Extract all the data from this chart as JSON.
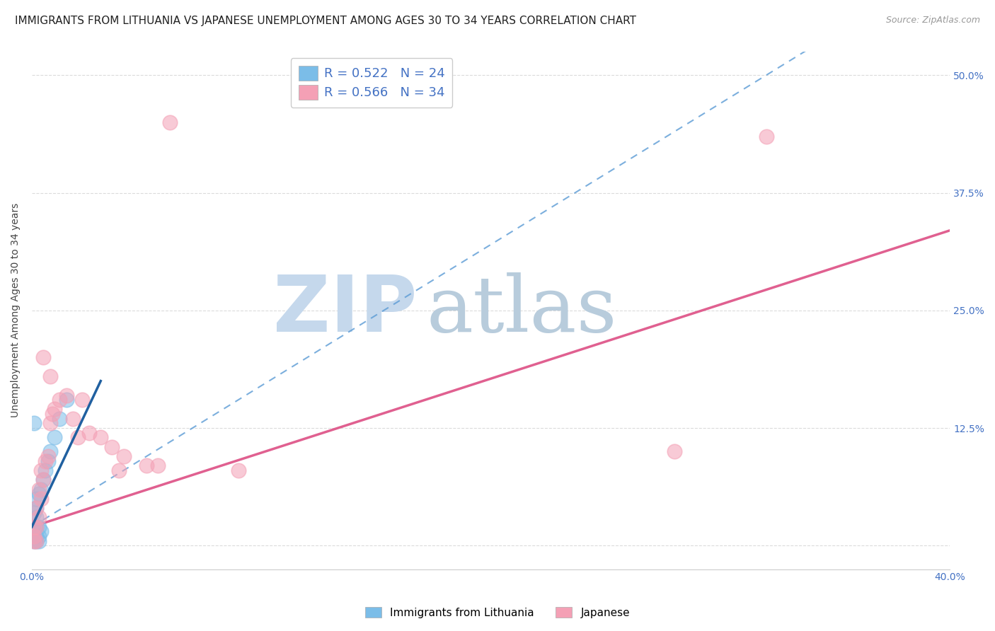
{
  "title": "IMMIGRANTS FROM LITHUANIA VS JAPANESE UNEMPLOYMENT AMONG AGES 30 TO 34 YEARS CORRELATION CHART",
  "source": "Source: ZipAtlas.com",
  "ylabel": "Unemployment Among Ages 30 to 34 years",
  "legend_blue": "Immigrants from Lithuania",
  "legend_pink": "Japanese",
  "xlim": [
    0.0,
    0.4
  ],
  "ylim": [
    -0.025,
    0.525
  ],
  "xticks": [
    0.0,
    0.08,
    0.16,
    0.24,
    0.32,
    0.4
  ],
  "xtick_labels": [
    "0.0%",
    "",
    "",
    "",
    "",
    "40.0%"
  ],
  "ytick_labels": [
    "",
    "12.5%",
    "25.0%",
    "37.5%",
    "50.0%"
  ],
  "yticks": [
    0.0,
    0.125,
    0.25,
    0.375,
    0.5
  ],
  "blue_r": "0.522",
  "blue_n": "24",
  "pink_r": "0.566",
  "pink_n": "34",
  "blue_color": "#7bbde8",
  "pink_color": "#f4a0b5",
  "blue_line_color": "#5b9bd5",
  "pink_line_color": "#e06090",
  "blue_solid_line": [
    [
      0.0,
      0.02
    ],
    [
      0.022,
      0.155
    ]
  ],
  "blue_dashed_line": [
    [
      0.0,
      0.02
    ],
    [
      0.4,
      0.62
    ]
  ],
  "pink_solid_line": [
    [
      0.0,
      0.02
    ],
    [
      0.4,
      0.33
    ]
  ],
  "blue_scatter": [
    [
      0.001,
      0.005
    ],
    [
      0.001,
      0.01
    ],
    [
      0.001,
      0.02
    ],
    [
      0.001,
      0.035
    ],
    [
      0.002,
      0.005
    ],
    [
      0.002,
      0.01
    ],
    [
      0.002,
      0.02
    ],
    [
      0.002,
      0.03
    ],
    [
      0.002,
      0.04
    ],
    [
      0.002,
      0.05
    ],
    [
      0.003,
      0.005
    ],
    [
      0.003,
      0.01
    ],
    [
      0.003,
      0.02
    ],
    [
      0.003,
      0.055
    ],
    [
      0.004,
      0.015
    ],
    [
      0.004,
      0.06
    ],
    [
      0.005,
      0.07
    ],
    [
      0.006,
      0.08
    ],
    [
      0.007,
      0.09
    ],
    [
      0.008,
      0.1
    ],
    [
      0.01,
      0.115
    ],
    [
      0.012,
      0.135
    ],
    [
      0.015,
      0.155
    ],
    [
      0.001,
      0.13
    ]
  ],
  "pink_scatter": [
    [
      0.001,
      0.005
    ],
    [
      0.001,
      0.01
    ],
    [
      0.001,
      0.02
    ],
    [
      0.002,
      0.005
    ],
    [
      0.002,
      0.02
    ],
    [
      0.002,
      0.04
    ],
    [
      0.003,
      0.03
    ],
    [
      0.003,
      0.06
    ],
    [
      0.004,
      0.05
    ],
    [
      0.004,
      0.08
    ],
    [
      0.005,
      0.07
    ],
    [
      0.005,
      0.2
    ],
    [
      0.006,
      0.09
    ],
    [
      0.007,
      0.095
    ],
    [
      0.008,
      0.13
    ],
    [
      0.009,
      0.14
    ],
    [
      0.01,
      0.145
    ],
    [
      0.012,
      0.155
    ],
    [
      0.015,
      0.16
    ],
    [
      0.018,
      0.135
    ],
    [
      0.02,
      0.115
    ],
    [
      0.022,
      0.155
    ],
    [
      0.025,
      0.12
    ],
    [
      0.03,
      0.115
    ],
    [
      0.035,
      0.105
    ],
    [
      0.038,
      0.08
    ],
    [
      0.04,
      0.095
    ],
    [
      0.05,
      0.085
    ],
    [
      0.055,
      0.085
    ],
    [
      0.06,
      0.45
    ],
    [
      0.09,
      0.08
    ],
    [
      0.28,
      0.1
    ],
    [
      0.32,
      0.435
    ],
    [
      0.008,
      0.18
    ]
  ],
  "watermark_zip": "ZIP",
  "watermark_atlas": "atlas",
  "watermark_color_zip": "#c5d8ec",
  "watermark_color_atlas": "#b8ccdc",
  "background_color": "#ffffff",
  "grid_color": "#cccccc",
  "title_fontsize": 11,
  "axis_label_fontsize": 10,
  "tick_fontsize": 10,
  "tick_color": "#4472c4",
  "legend_fontsize": 13
}
